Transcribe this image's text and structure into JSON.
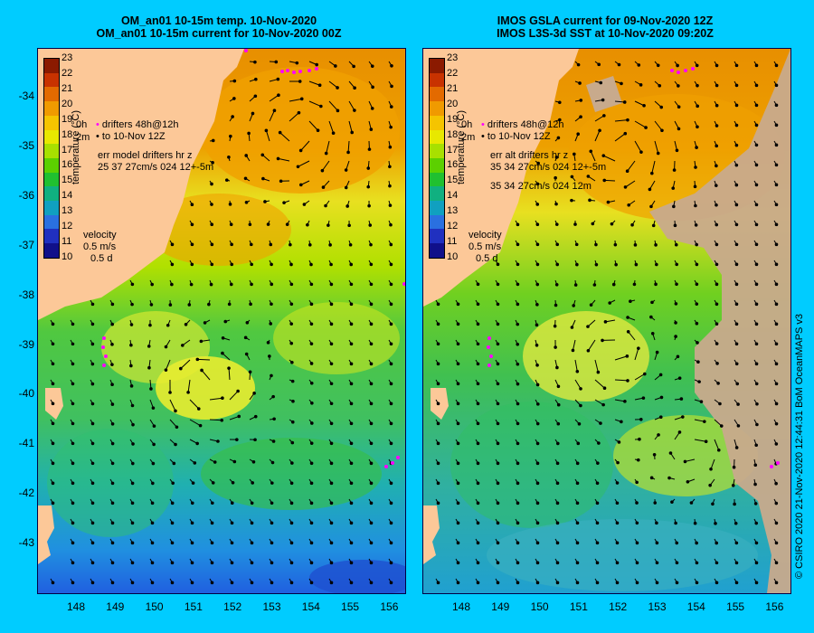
{
  "left_panel": {
    "title_line1": "OM_an01 10-15m temp. 10-Nov-2020",
    "title_line2": "OM_an01 10-15m current for 10-Nov-2020 00Z",
    "legend_line1": "drifters 48h@12h",
    "legend_line2": "to 10-Nov 12Z",
    "legend_line3": "err model drifters hr z",
    "legend_line4": "25 37 27cm/s 024 12+-5m",
    "velocity_label": "velocity",
    "velocity_scale": "0.5 m/s",
    "velocity_days": "0.5 d",
    "side_label_top": "0h",
    "side_label_mid": "2m"
  },
  "right_panel": {
    "title_line1": "IMOS GSLA current for 09-Nov-2020 12Z",
    "title_line2": "IMOS L3S-3d SST at 10-Nov-2020 09:20Z",
    "legend_line1": "drifters 48h@12h",
    "legend_line2": "to 10-Nov 12Z",
    "legend_line3": "err alt drifters hr z",
    "legend_line4": "35 34 27cm/s 024 12+-5m",
    "legend_line5": "35 34 27cm/s 024 12m",
    "velocity_label": "velocity",
    "velocity_scale": "0.5 m/s",
    "velocity_days": "0.5 d",
    "side_label_top": "0h",
    "side_label_mid": "2m"
  },
  "colorbar": {
    "title": "temperature (°C)",
    "ticks": [
      "23",
      "22",
      "21",
      "20",
      "19",
      "18",
      "17",
      "16",
      "15",
      "14",
      "13",
      "12",
      "11",
      "10"
    ],
    "colors": [
      "#8b1a00",
      "#c83200",
      "#e36a00",
      "#f09a00",
      "#f5c400",
      "#e8e800",
      "#a8e000",
      "#5cd000",
      "#20c030",
      "#10b080",
      "#10a0c0",
      "#2a70e0",
      "#2030c0",
      "#10108a"
    ]
  },
  "y_axis": [
    "-34",
    "-35",
    "-36",
    "-37",
    "-38",
    "-39",
    "-40",
    "-41",
    "-42",
    "-43"
  ],
  "x_axis": [
    "148",
    "149",
    "150",
    "151",
    "152",
    "153",
    "154",
    "155",
    "156"
  ],
  "credit": "© CSIRO 2020   21-Nov-2020 12:44:31 BoM OceanMAPS v3",
  "colors": {
    "background": "#00ccff",
    "land": "#fcc898",
    "no_data": "#c8aa8c",
    "drifter": "#ff00ff"
  }
}
